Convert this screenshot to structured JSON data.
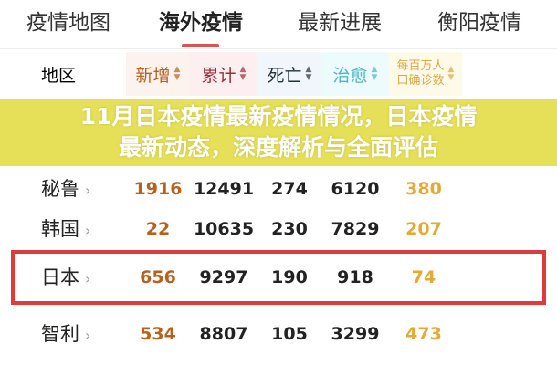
{
  "tabs": [
    {
      "label": "疫情地图"
    },
    {
      "label": "海外疫情",
      "active": true
    },
    {
      "label": "最新进展"
    },
    {
      "label": "衡阳疫情"
    }
  ],
  "table": {
    "headers": {
      "region": "地区",
      "new": "新增",
      "total": "累计",
      "deaths": "死亡",
      "recovered": "治愈",
      "per_million_1": "每百万人",
      "per_million_2": "口确诊数"
    },
    "rows": [
      {
        "region": "秘鲁",
        "new": "1916",
        "total": "12491",
        "deaths": "274",
        "recovered": "6120",
        "per_million": "380"
      },
      {
        "region": "韩国",
        "new": "22",
        "total": "10635",
        "deaths": "230",
        "recovered": "7829",
        "per_million": "207"
      },
      {
        "region": "日本",
        "new": "656",
        "total": "9297",
        "deaths": "190",
        "recovered": "918",
        "per_million": "74",
        "highlighted": true
      },
      {
        "region": "智利",
        "new": "534",
        "total": "8807",
        "deaths": "105",
        "recovered": "3299",
        "per_million": "473"
      }
    ]
  },
  "overlay": {
    "line1": "11月日本疫情最新疫情情况，日本疫情",
    "line2": "最新动态，深度解析与全面评估"
  },
  "colors": {
    "accent": "#e03a3a",
    "new": "#b8611e",
    "per_million": "#e6a935",
    "banner": "#e2da3c"
  }
}
